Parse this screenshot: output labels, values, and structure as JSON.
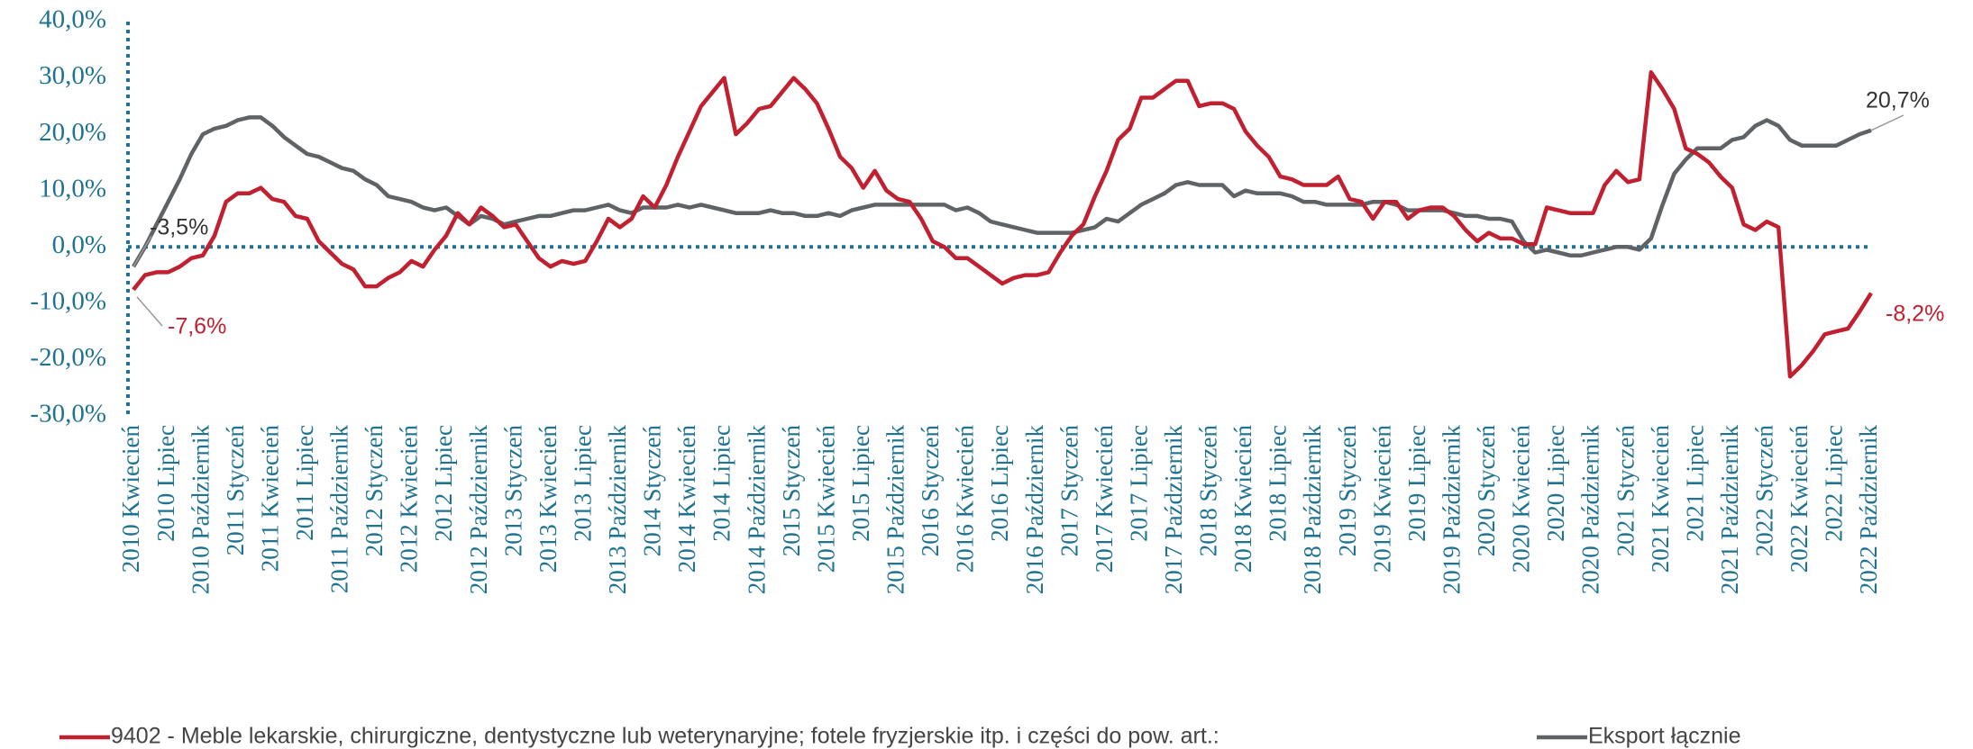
{
  "chart_data": {
    "type": "line",
    "categories": [
      "2010 Kwiecień",
      null,
      null,
      "2010 Lipiec",
      null,
      null,
      "2010 Październik",
      null,
      null,
      "2011 Styczeń",
      null,
      null,
      "2011 Kwiecień",
      null,
      null,
      "2011 Lipiec",
      null,
      null,
      "2011 Październik",
      null,
      null,
      "2012 Styczeń",
      null,
      null,
      "2012 Kwiecień",
      null,
      null,
      "2012 Lipiec",
      null,
      null,
      "2012 Październik",
      null,
      null,
      "2013 Styczeń",
      null,
      null,
      "2013 Kwiecień",
      null,
      null,
      "2013 Lipiec",
      null,
      null,
      "2013 Październik",
      null,
      null,
      "2014 Styczeń",
      null,
      null,
      "2014 Kwiecień",
      null,
      null,
      "2014 Lipiec",
      null,
      null,
      "2014 Październik",
      null,
      null,
      "2015 Styczeń",
      null,
      null,
      "2015 Kwiecień",
      null,
      null,
      "2015 Lipiec",
      null,
      null,
      "2015 Październik",
      null,
      null,
      "2016 Styczeń",
      null,
      null,
      "2016 Kwiecień",
      null,
      null,
      "2016 Lipiec",
      null,
      null,
      "2016 Październik",
      null,
      null,
      "2017 Styczeń",
      null,
      null,
      "2017 Kwiecień",
      null,
      null,
      "2017 Lipiec",
      null,
      null,
      "2017 Październik",
      null,
      null,
      "2018 Styczeń",
      null,
      null,
      "2018 Kwiecień",
      null,
      null,
      "2018 Lipiec",
      null,
      null,
      "2018 Październik",
      null,
      null,
      "2019 Styczeń",
      null,
      null,
      "2019 Kwiecień",
      null,
      null,
      "2019 Lipiec",
      null,
      null,
      "2019 Październik",
      null,
      null,
      "2020 Styczeń",
      null,
      null,
      "2020 Kwiecień",
      null,
      null,
      "2020 Lipiec",
      null,
      null,
      "2020 Październik",
      null,
      null,
      "2021 Styczeń",
      null,
      null,
      "2021 Kwiecień",
      null,
      null,
      "2021 Lipiec",
      null,
      null,
      "2021 Październik",
      null,
      null,
      "2022 Styczeń",
      null,
      null,
      "2022 Kwiecień",
      null,
      null,
      "2022 Lipiec",
      null,
      null,
      "2022 Październik"
    ],
    "series": [
      {
        "name": "9402 - Meble lekarskie, chirurgiczne, dentystyczne lub weterynaryjne; fotele fryzjerskie itp. i części do pow. art.:",
        "color": "#c0202f",
        "values": [
          -7.6,
          -5,
          -4.5,
          -4.5,
          -3.5,
          -2,
          -1.5,
          2,
          8,
          9.5,
          9.5,
          10.5,
          8.5,
          8,
          5.5,
          5,
          1,
          -1,
          -3,
          -4,
          -7,
          -7,
          -5.5,
          -4.5,
          -2.5,
          -3.5,
          -0.5,
          2,
          6,
          4,
          7,
          5.5,
          3.5,
          4,
          1,
          -2,
          -3.5,
          -2.5,
          -3,
          -2.5,
          1,
          5,
          3.5,
          5,
          9,
          7,
          11,
          16,
          20.5,
          25,
          27.5,
          30,
          20,
          22,
          24.5,
          25,
          27.5,
          30,
          28,
          25.5,
          21,
          16,
          14,
          10.5,
          13.5,
          10,
          8.5,
          8,
          5,
          1,
          0,
          -2,
          -2,
          -3.5,
          -5,
          -6.5,
          -5.5,
          -5,
          -5,
          -4.5,
          -1,
          2,
          4,
          9,
          13.5,
          19,
          21,
          26.5,
          26.5,
          28,
          29.5,
          29.5,
          25,
          25.5,
          25.5,
          24.5,
          20.5,
          18,
          16,
          12.5,
          12,
          11,
          11,
          11,
          12.5,
          8.5,
          8,
          5,
          8,
          8,
          5,
          6.5,
          7,
          7,
          5.5,
          3,
          1,
          2.5,
          1.5,
          1.5,
          0.5,
          0.5,
          7,
          6.5,
          6,
          6,
          6,
          11,
          13.5,
          11.5,
          12,
          31,
          28,
          24.5,
          17.5,
          16.5,
          15,
          12.5,
          10.5,
          4,
          3,
          4.5,
          3.5,
          -23,
          -21,
          -18.5,
          -15.5,
          -15,
          -14.5,
          -11.5,
          -8.2
        ]
      },
      {
        "name": "Eksport łącznie",
        "color": "#606366",
        "values": [
          -3.5,
          0,
          4,
          8,
          12,
          16.5,
          20,
          21,
          21.5,
          22.5,
          23,
          23,
          21.5,
          19.5,
          18,
          16.5,
          16,
          15,
          14,
          13.5,
          12,
          11,
          9,
          8.5,
          8,
          7,
          6.5,
          7,
          5.5,
          4,
          5.5,
          5,
          4,
          4.5,
          5,
          5.5,
          5.5,
          6,
          6.5,
          6.5,
          7,
          7.5,
          6.5,
          6,
          7,
          7,
          7,
          7.5,
          7,
          7.5,
          7,
          6.5,
          6,
          6,
          6,
          6.5,
          6,
          6,
          5.5,
          5.5,
          6,
          5.5,
          6.5,
          7,
          7.5,
          7.5,
          7.5,
          7.5,
          7.5,
          7.5,
          7.5,
          6.5,
          7,
          6,
          4.5,
          4,
          3.5,
          3,
          2.5,
          2.5,
          2.5,
          2.5,
          3,
          3.5,
          5,
          4.5,
          6,
          7.5,
          8.5,
          9.5,
          11,
          11.5,
          11,
          11,
          11,
          9,
          10,
          9.5,
          9.5,
          9.5,
          9,
          8,
          8,
          7.5,
          7.5,
          7.5,
          7.5,
          8,
          8,
          7.5,
          6.5,
          6.5,
          6.5,
          6.5,
          6,
          5.5,
          5.5,
          5,
          5,
          4.5,
          1,
          -1,
          -0.5,
          -1,
          -1.5,
          -1.5,
          -1,
          -0.5,
          0,
          0,
          -0.5,
          1.5,
          7.5,
          13,
          15.5,
          17.5,
          17.5,
          17.5,
          19,
          19.5,
          21.5,
          22.5,
          21.5,
          19,
          18,
          18,
          18,
          18,
          19,
          20,
          20.7
        ]
      }
    ],
    "annotations": [
      "-3,5%",
      "-7,6%",
      "20,7%",
      "-8,2%"
    ],
    "ylim": [
      -30,
      40
    ],
    "yticks": [
      {
        "value": -30,
        "label": "-30,0%"
      },
      {
        "value": -20,
        "label": "-20,0%"
      },
      {
        "value": -10,
        "label": "-10,0%"
      },
      {
        "value": 0,
        "label": "0,0%"
      },
      {
        "value": 10,
        "label": "10,0%"
      },
      {
        "value": 20,
        "label": "20,0%"
      },
      {
        "value": 30,
        "label": "30,0%"
      },
      {
        "value": 40,
        "label": "40,0%"
      }
    ],
    "grid": false,
    "legend": "bottom"
  }
}
